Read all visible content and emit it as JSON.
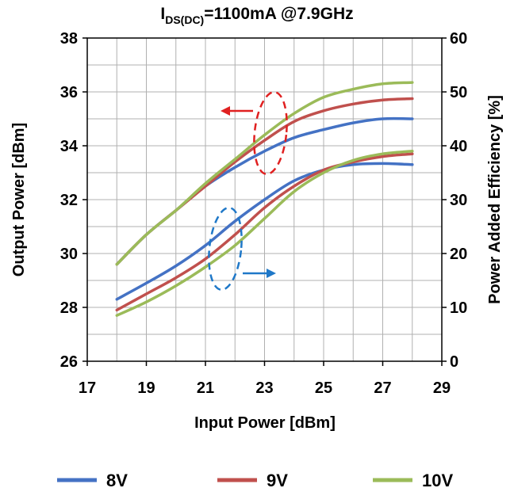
{
  "chart_data": {
    "type": "line",
    "title_main": "I",
    "title_sub": "DS(DC)",
    "title_rest": "=1100mA @7.9GHz",
    "xlabel": "Input Power [dBm]",
    "ylabel": "Output Power [dBm]",
    "y2label": "Power Added Efficiency [%]",
    "xlim": [
      17,
      29
    ],
    "ylim": [
      26,
      38
    ],
    "y2lim": [
      0,
      60
    ],
    "x_ticks": [
      "17",
      "19",
      "21",
      "23",
      "25",
      "27",
      "29"
    ],
    "y_ticks": [
      "26",
      "28",
      "30",
      "32",
      "34",
      "36",
      "38"
    ],
    "y2_ticks": [
      "0",
      "10",
      "20",
      "30",
      "40",
      "50",
      "60"
    ],
    "grid": true,
    "legend_position": "bottom",
    "x": [
      18,
      19,
      20,
      21,
      22,
      23,
      24,
      25,
      26,
      27,
      28
    ],
    "series": [
      {
        "name": "8V",
        "color": "#4472C4",
        "pout": [
          29.6,
          30.7,
          31.6,
          32.5,
          33.2,
          33.8,
          34.3,
          34.6,
          34.85,
          35.0,
          35.0
        ],
        "pae": [
          11.5,
          14.5,
          17.7,
          21.5,
          26.0,
          30.0,
          33.5,
          35.5,
          36.5,
          36.7,
          36.5
        ]
      },
      {
        "name": "9V",
        "color": "#C0504D",
        "pout": [
          29.6,
          30.7,
          31.6,
          32.5,
          33.4,
          34.2,
          34.9,
          35.3,
          35.55,
          35.7,
          35.75
        ],
        "pae": [
          9.5,
          12.5,
          15.5,
          19.0,
          23.5,
          28.5,
          32.5,
          35.5,
          37.0,
          38.0,
          38.5
        ]
      },
      {
        "name": "10V",
        "color": "#9BBB59",
        "pout": [
          29.6,
          30.7,
          31.6,
          32.6,
          33.5,
          34.4,
          35.2,
          35.8,
          36.1,
          36.3,
          36.35
        ],
        "pae": [
          8.5,
          11.0,
          14.0,
          17.5,
          21.5,
          26.5,
          31.5,
          35.0,
          37.3,
          38.5,
          39.0
        ]
      }
    ]
  }
}
